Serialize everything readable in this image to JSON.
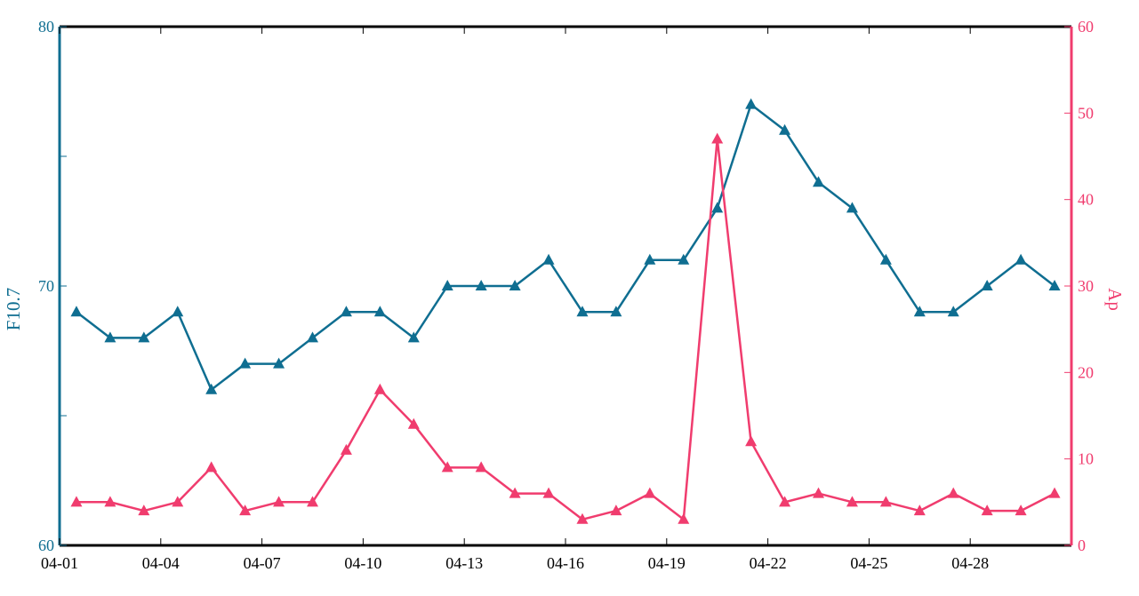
{
  "chart_data": {
    "type": "line",
    "x": [
      "04-01",
      "04-02",
      "04-03",
      "04-04",
      "04-05",
      "04-06",
      "04-07",
      "04-08",
      "04-09",
      "04-10",
      "04-11",
      "04-12",
      "04-13",
      "04-14",
      "04-15",
      "04-16",
      "04-17",
      "04-18",
      "04-19",
      "04-20",
      "04-21",
      "04-22",
      "04-23",
      "04-24",
      "04-25",
      "04-26",
      "04-27",
      "04-28",
      "04-29",
      "04-30"
    ],
    "x_tick_labels": [
      "04-01",
      "04-04",
      "04-07",
      "04-10",
      "04-13",
      "04-16",
      "04-19",
      "04-22",
      "04-25",
      "04-28"
    ],
    "series": [
      {
        "name": "",
        "axis": "left",
        "color": "#0f6e91",
        "marker": "triangle",
        "values": [
          69,
          68,
          68,
          69,
          66,
          67,
          67,
          68,
          69,
          69,
          68,
          70,
          70,
          70,
          71,
          69,
          69,
          71,
          71,
          73,
          77,
          76,
          74,
          73,
          71,
          69,
          69,
          70,
          71,
          70
        ]
      },
      {
        "name": "",
        "axis": "right",
        "color": "#f03c6e",
        "marker": "triangle",
        "values": [
          5,
          5,
          4,
          5,
          9,
          4,
          5,
          5,
          11,
          18,
          14,
          9,
          9,
          6,
          6,
          3,
          4,
          6,
          3,
          47,
          12,
          5,
          6,
          5,
          5,
          4,
          6,
          4,
          4,
          6
        ]
      }
    ],
    "y_left": {
      "label": "F10.7",
      "lim": [
        60,
        80
      ],
      "ticks": [
        "60",
        "70",
        "80"
      ],
      "color": "#0f6e91"
    },
    "y_right": {
      "label": "Ap",
      "lim": [
        0,
        60
      ],
      "ticks": [
        "0",
        "10",
        "20",
        "30",
        "40",
        "50",
        "60"
      ],
      "color": "#f03c6e"
    },
    "grid": false,
    "legend": "none"
  }
}
